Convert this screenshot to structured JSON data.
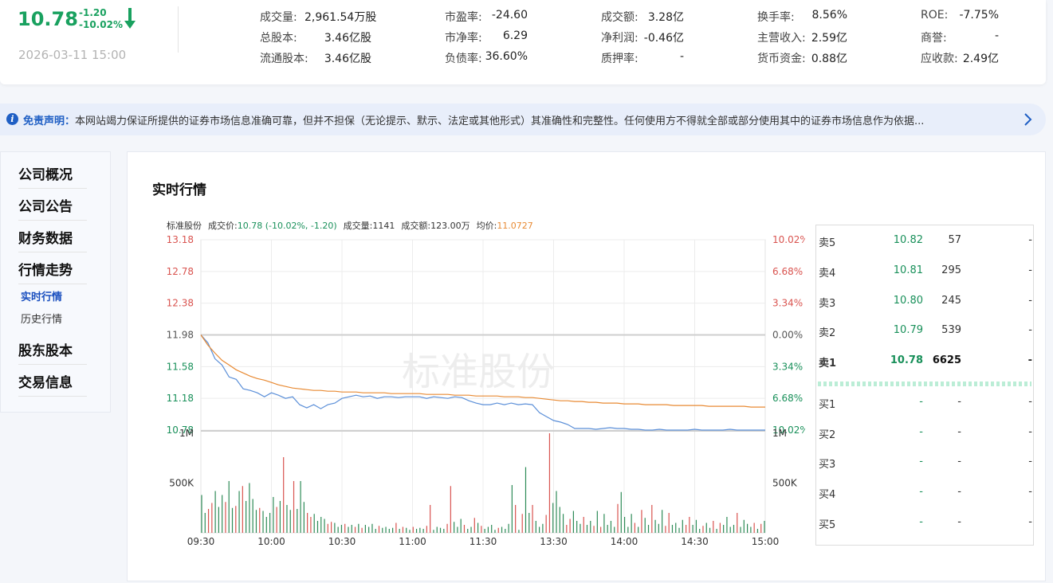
{
  "quote": {
    "price": "10.78",
    "change": "-1.20",
    "change_pct": "-10.02%",
    "time": "2026-03-11 15:00",
    "down_color": "#19a15f"
  },
  "stats": [
    {
      "label": "成交量:",
      "value": "2,961.54万股"
    },
    {
      "label": "总股本:",
      "value": "3.46亿股"
    },
    {
      "label": "流通股本:",
      "value": "3.46亿股"
    },
    {
      "label": "市盈率:",
      "value": "-24.60"
    },
    {
      "label": "市净率:",
      "value": "6.29"
    },
    {
      "label": "负债率:",
      "value": "36.60%"
    },
    {
      "label": "成交额:",
      "value": "3.28亿"
    },
    {
      "label": "净利润:",
      "value": "-0.46亿"
    },
    {
      "label": "质押率:",
      "value": "-"
    },
    {
      "label": "换手率:",
      "value": "8.56%"
    },
    {
      "label": "主营收入:",
      "value": "2.59亿"
    },
    {
      "label": "货币资金:",
      "value": "0.88亿"
    },
    {
      "label": "ROE:",
      "value": "-7.75%"
    },
    {
      "label": "商誉:",
      "value": "-"
    },
    {
      "label": "应收款:",
      "value": "2.49亿"
    }
  ],
  "notice": {
    "title": "免责声明",
    "sep": "：",
    "text": "本网站竭力保证所提供的证券市场信息准确可靠，但并不担保（无论提示、默示、法定或其他形式）其准确性和完整性。任何使用方不得就全部或部分使用其中的证券市场信息作为依据...",
    "icon": "info-icon"
  },
  "sidebar": {
    "items": [
      "公司概况",
      "公司公告",
      "财务数据",
      "行情走势",
      "股东股本",
      "交易信息"
    ],
    "subitems": [
      "实时行情",
      "历史行情"
    ],
    "active_color": "#1a4fbf"
  },
  "section_title": "实时行情",
  "chart_header": {
    "name": "标准股份",
    "price_label": "成交价:",
    "price_value": "10.78 (-10.02%, -1.20)",
    "volume_label": "成交量:",
    "volume_value": "1141",
    "amount_label": "成交额:",
    "amount_value": "123.00万",
    "avg_label": "均价:",
    "avg_value": "11.0727"
  },
  "watermark": "标准股份",
  "chart_data": {
    "type": "line",
    "title": "",
    "x_ticks": [
      "09:30",
      "10:00",
      "10:30",
      "11:00",
      "11:30",
      "13:30",
      "14:00",
      "14:30",
      "15:00"
    ],
    "price_ticks_left": [
      "13.18",
      "12.78",
      "12.38",
      "11.98",
      "11.58",
      "11.18",
      "10.78"
    ],
    "pct_ticks_right": [
      "10.02%",
      "6.68%",
      "3.34%",
      "0.00%",
      "3.34%",
      "6.68%",
      "10.02%"
    ],
    "ylim": [
      10.78,
      13.18
    ],
    "prev_close": 11.98,
    "volume_ticks": [
      "1M",
      "500K"
    ],
    "volume_ylim": [
      0,
      1000000
    ],
    "series": [
      {
        "name": "成交价",
        "color": "#5b8fd8",
        "values": [
          11.98,
          11.88,
          11.68,
          11.6,
          11.45,
          11.42,
          11.3,
          11.28,
          11.25,
          11.2,
          11.25,
          11.22,
          11.18,
          11.2,
          11.1,
          11.06,
          11.1,
          11.05,
          11.1,
          11.12,
          11.18,
          11.2,
          11.22,
          11.2,
          11.21,
          11.18,
          11.2,
          11.2,
          11.19,
          11.2,
          11.2,
          11.2,
          11.18,
          11.2,
          11.19,
          11.18,
          11.2,
          11.19,
          11.15,
          11.12,
          11.1,
          11.1,
          11.12,
          11.1,
          11.12,
          11.1,
          11.11,
          11.1,
          11.0,
          10.95,
          10.9,
          10.88,
          10.85,
          10.8,
          10.8,
          10.8,
          10.79,
          10.8,
          10.81,
          10.8,
          10.8,
          10.79,
          10.79,
          10.78,
          10.78,
          10.79,
          10.78,
          10.78,
          10.78,
          10.78,
          10.79,
          10.78,
          10.78,
          10.78,
          10.78,
          10.79,
          10.78,
          10.78,
          10.78,
          10.78,
          10.78
        ]
      },
      {
        "name": "均价",
        "color": "#e88a33",
        "values": [
          11.98,
          11.85,
          11.75,
          11.66,
          11.6,
          11.54,
          11.5,
          11.46,
          11.43,
          11.41,
          11.38,
          11.35,
          11.33,
          11.31,
          11.3,
          11.29,
          11.28,
          11.28,
          11.27,
          11.27,
          11.26,
          11.26,
          11.26,
          11.25,
          11.25,
          11.25,
          11.25,
          11.24,
          11.24,
          11.24,
          11.24,
          11.24,
          11.23,
          11.23,
          11.23,
          11.23,
          11.22,
          11.22,
          11.22,
          11.21,
          11.21,
          11.21,
          11.21,
          11.2,
          11.2,
          11.2,
          11.19,
          11.19,
          11.18,
          11.17,
          11.16,
          11.15,
          11.15,
          11.14,
          11.14,
          11.13,
          11.13,
          11.12,
          11.12,
          11.12,
          11.11,
          11.11,
          11.11,
          11.1,
          11.1,
          11.1,
          11.1,
          11.09,
          11.09,
          11.09,
          11.09,
          11.09,
          11.08,
          11.08,
          11.08,
          11.08,
          11.08,
          11.08,
          11.07,
          11.07,
          11.07
        ]
      },
      {
        "name": "成交量",
        "type": "bar",
        "values": [
          380000,
          200000,
          240000,
          300000,
          420000,
          260000,
          380000,
          310000,
          520000,
          250000,
          270000,
          420000,
          470000,
          320000,
          500000,
          340000,
          230000,
          250000,
          220000,
          160000,
          200000,
          360000,
          260000,
          320000,
          760000,
          280000,
          230000,
          520000,
          240000,
          520000,
          310000,
          200000,
          160000,
          190000,
          120000,
          160000,
          140000,
          90000,
          110000,
          100000,
          60000,
          80000,
          90000,
          60000,
          80000,
          60000,
          90000,
          50000,
          80000,
          60000,
          90000,
          40000,
          70000,
          50000,
          60000,
          40000,
          50000,
          100000,
          40000,
          60000,
          50000,
          30000,
          60000,
          40000,
          50000,
          40000,
          70000,
          280000,
          30000,
          60000,
          50000,
          40000,
          90000,
          470000,
          110000,
          60000,
          140000,
          80000,
          40000,
          60000,
          150000,
          100000,
          70000,
          40000,
          60000,
          80000,
          30000,
          50000,
          60000,
          40000,
          90000,
          480000,
          280000,
          30000,
          190000,
          660000,
          200000,
          280000,
          120000,
          60000,
          90000,
          180000,
          1000000,
          300000,
          420000,
          260000,
          190000,
          80000,
          140000,
          220000,
          120000,
          90000,
          160000,
          80000,
          120000,
          70000,
          220000,
          60000,
          190000,
          80000,
          120000,
          60000,
          290000,
          410000,
          160000,
          60000,
          190000,
          100000,
          60000,
          230000,
          150000,
          80000,
          280000,
          130000,
          90000,
          230000,
          70000,
          200000,
          80000,
          100000,
          50000,
          130000,
          80000,
          160000,
          80000,
          130000,
          40000,
          70000,
          100000,
          50000,
          120000,
          40000,
          100000,
          80000,
          160000,
          60000,
          80000,
          200000,
          60000,
          130000,
          90000,
          60000,
          100000,
          40000,
          90000,
          120000
        ]
      }
    ]
  },
  "orderbook": {
    "sell": [
      {
        "label": "卖5",
        "price": "10.82",
        "vol": "57",
        "extra": "-"
      },
      {
        "label": "卖4",
        "price": "10.81",
        "vol": "295",
        "extra": "-"
      },
      {
        "label": "卖3",
        "price": "10.80",
        "vol": "245",
        "extra": "-"
      },
      {
        "label": "卖2",
        "price": "10.79",
        "vol": "539",
        "extra": "-"
      },
      {
        "label": "卖1",
        "price": "10.78",
        "vol": "6625",
        "extra": "-"
      }
    ],
    "buy": [
      {
        "label": "买1",
        "price": "-",
        "vol": "-",
        "extra": "-"
      },
      {
        "label": "买2",
        "price": "-",
        "vol": "-",
        "extra": "-"
      },
      {
        "label": "买3",
        "price": "-",
        "vol": "-",
        "extra": "-"
      },
      {
        "label": "买4",
        "price": "-",
        "vol": "-",
        "extra": "-"
      },
      {
        "label": "买5",
        "price": "-",
        "vol": "-",
        "extra": "-"
      }
    ]
  }
}
